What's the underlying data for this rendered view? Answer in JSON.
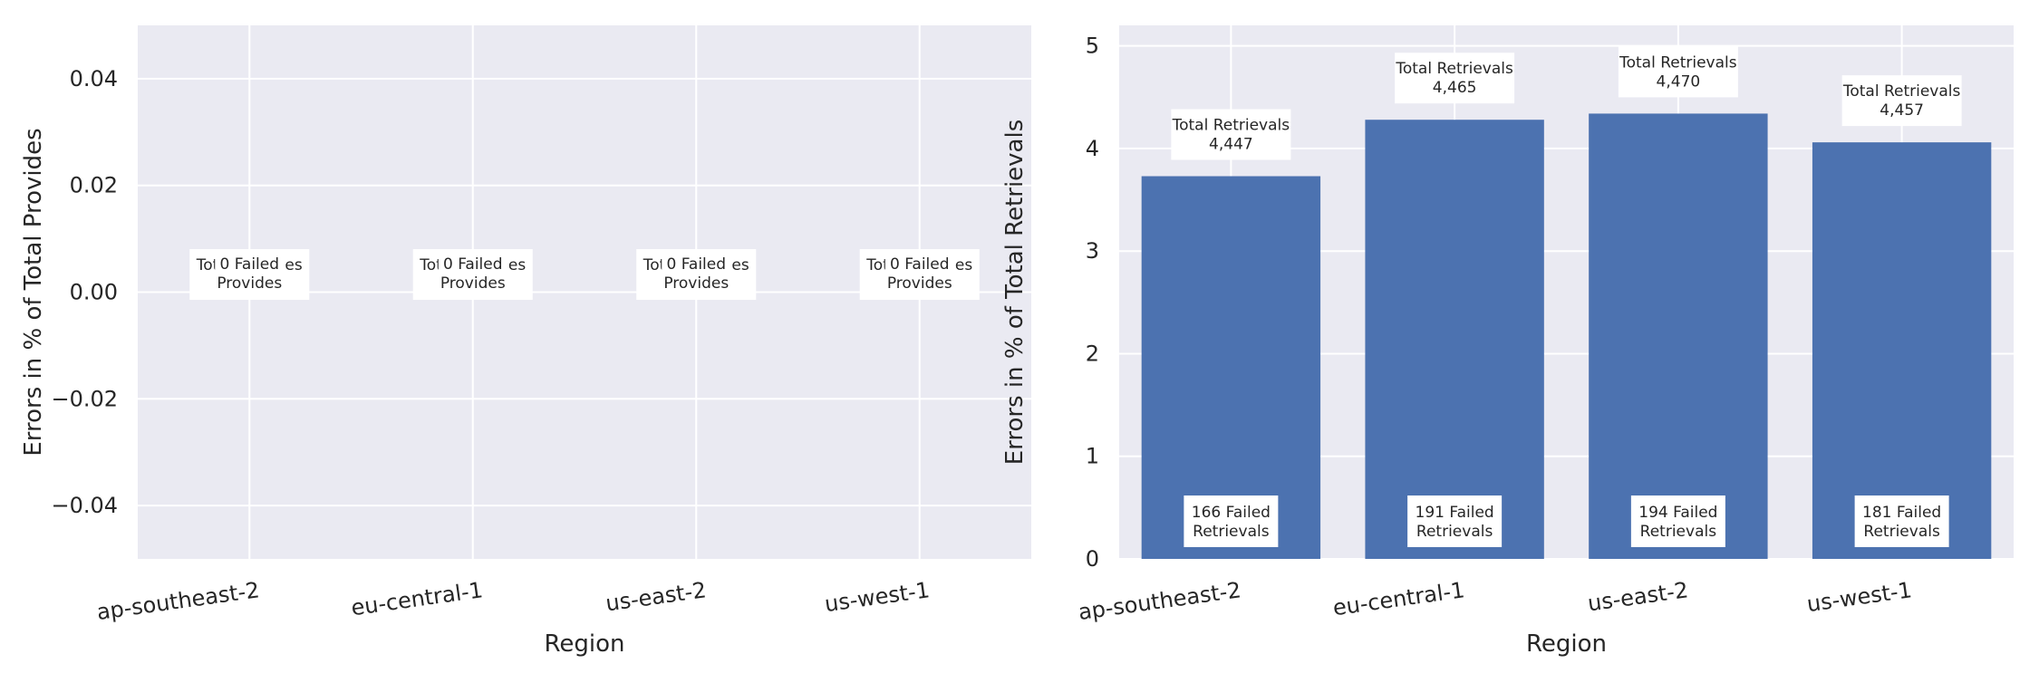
{
  "chart_data": [
    {
      "type": "bar",
      "xlabel": "Region",
      "ylabel": "Errors in % of Total Provides",
      "categories": [
        "ap-southeast-2",
        "eu-central-1",
        "us-east-2",
        "us-west-1"
      ],
      "values": [
        0,
        0,
        0,
        0
      ],
      "ylim": [
        -0.05,
        0.05
      ],
      "yticks": [
        -0.04,
        -0.02,
        0.0,
        0.02,
        0.04
      ],
      "ytick_labels": [
        "−0.04",
        "−0.02",
        "0.00",
        "0.02",
        "0.04"
      ],
      "grid": true,
      "annotations": {
        "total_label": "Total Provides",
        "totals": [
          "",
          "",
          "",
          ""
        ],
        "failed_labels": [
          [
            "0 Failed",
            "Provides"
          ],
          [
            "0 Failed",
            "Provides"
          ],
          [
            "0 Failed",
            "Provides"
          ],
          [
            "0 Failed",
            "Provides"
          ]
        ]
      }
    },
    {
      "type": "bar",
      "xlabel": "Region",
      "ylabel": "Errors in % of Total Retrievals",
      "categories": [
        "ap-southeast-2",
        "eu-central-1",
        "us-east-2",
        "us-west-1"
      ],
      "values": [
        3.73,
        4.28,
        4.34,
        4.06
      ],
      "ylim": [
        0,
        5.2
      ],
      "yticks": [
        0,
        1,
        2,
        3,
        4,
        5
      ],
      "ytick_labels": [
        "0",
        "1",
        "2",
        "3",
        "4",
        "5"
      ],
      "grid": true,
      "color": "#4c72b0",
      "annotations": {
        "total_label": "Total Retrievals",
        "totals": [
          "4,447",
          "4,465",
          "4,470",
          "4,457"
        ],
        "failed_labels": [
          [
            "166 Failed",
            "Retrievals"
          ],
          [
            "191 Failed",
            "Retrievals"
          ],
          [
            "194 Failed",
            "Retrievals"
          ],
          [
            "181 Failed",
            "Retrievals"
          ]
        ]
      }
    }
  ]
}
